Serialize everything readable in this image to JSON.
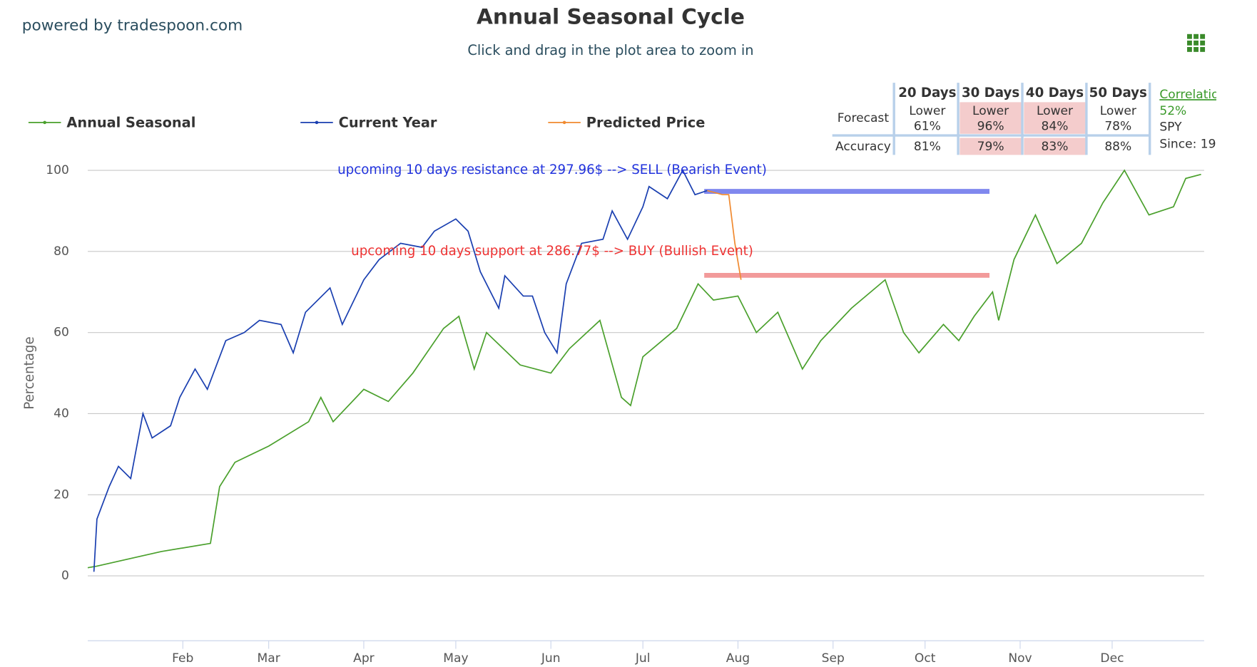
{
  "brand": "powered by tradespoon.com",
  "chart_data": {
    "type": "line",
    "title": "Annual Seasonal Cycle",
    "subtitle": "Click and drag in the plot area to zoom in",
    "y_label": "Percentage",
    "xlim": [
      1,
      365
    ],
    "ylim": [
      -16,
      102
    ],
    "yticks": [
      0,
      20,
      40,
      60,
      80,
      100
    ],
    "xticks": [
      {
        "value": 32,
        "label": "Feb"
      },
      {
        "value": 60,
        "label": "Mar"
      },
      {
        "value": 91,
        "label": "Apr"
      },
      {
        "value": 121,
        "label": "May"
      },
      {
        "value": 152,
        "label": "Jun"
      },
      {
        "value": 182,
        "label": "Jul"
      },
      {
        "value": 213,
        "label": "Aug"
      },
      {
        "value": 244,
        "label": "Sep"
      },
      {
        "value": 274,
        "label": "Oct"
      },
      {
        "value": 305,
        "label": "Nov"
      },
      {
        "value": 335,
        "label": "Dec"
      }
    ],
    "grid": true,
    "series": [
      {
        "name": "Annual Seasonal",
        "color": "#4aa02c",
        "x": [
          1,
          4,
          25,
          41,
          44,
          49,
          60,
          73,
          77,
          81,
          91,
          99,
          107,
          117,
          122,
          127,
          131,
          142,
          152,
          158,
          168,
          175,
          178,
          182,
          193,
          200,
          205,
          213,
          219,
          226,
          234,
          240,
          250,
          261,
          267,
          272,
          280,
          285,
          290,
          296,
          298,
          303,
          310,
          317,
          325,
          332,
          339,
          347,
          355,
          359,
          364
        ],
        "values": [
          2,
          2.4,
          6,
          8,
          22,
          28,
          32,
          38,
          44,
          38,
          46,
          43,
          50,
          61,
          64,
          51,
          60,
          52,
          50,
          56,
          63,
          44,
          42,
          54,
          61,
          72,
          68,
          69,
          60,
          65,
          51,
          58,
          66,
          73,
          60,
          55,
          62,
          58,
          64,
          70,
          63,
          78,
          89,
          77,
          82,
          92,
          100,
          89,
          91,
          98,
          99
        ]
      },
      {
        "name": "Current Year",
        "color": "#1a3fb0",
        "x": [
          3,
          4,
          8,
          11,
          15,
          19,
          22,
          28,
          31,
          36,
          40,
          46,
          52,
          57,
          64,
          68,
          72,
          80,
          84,
          91,
          96,
          103,
          110,
          114,
          121,
          125,
          129,
          135,
          137,
          143,
          146,
          150,
          154,
          157,
          162,
          169,
          172,
          177,
          182,
          184,
          190,
          195,
          199,
          203
        ],
        "values": [
          1,
          14,
          22,
          27,
          24,
          40,
          34,
          37,
          44,
          51,
          46,
          58,
          60,
          63,
          62,
          55,
          65,
          71,
          62,
          73,
          78,
          82,
          81,
          85,
          88,
          85,
          75,
          66,
          74,
          69,
          69,
          60,
          55,
          72,
          82,
          83,
          90,
          83,
          91,
          96,
          93,
          100,
          94,
          95
        ]
      },
      {
        "name": "Predicted Price",
        "color": "#f08a30",
        "x": [
          203,
          208,
          210,
          212,
          214
        ],
        "values": [
          95,
          94,
          94,
          82,
          73
        ]
      }
    ],
    "levels": [
      {
        "value": 94.8,
        "x": [
          202,
          295
        ],
        "color": "#8088ee",
        "text": "upcoming 10 days resistance at 297.96$ --> SELL (Bearish Event)",
        "text_color": "#2233dd"
      },
      {
        "value": 74.1,
        "x": [
          202,
          295
        ],
        "color": "#f29a9a",
        "text": "upcoming 10 days support at 286.77$ --> BUY (Bullish Event)",
        "text_color": "#ee3333"
      }
    ]
  },
  "table": {
    "headers": [
      "20 Days",
      "30 Days",
      "40 Days",
      "50 Days"
    ],
    "forecast_label": "Forecast",
    "forecast": [
      {
        "direction": "Lower",
        "value": "61%",
        "highlight": false
      },
      {
        "direction": "Lower",
        "value": "96%",
        "highlight": true
      },
      {
        "direction": "Lower",
        "value": "84%",
        "highlight": true
      },
      {
        "direction": "Lower",
        "value": "78%",
        "highlight": false
      }
    ],
    "accuracy_label": "Accuracy",
    "accuracy": [
      {
        "value": "81%",
        "highlight": false
      },
      {
        "value": "79%",
        "highlight": true
      },
      {
        "value": "83%",
        "highlight": true
      },
      {
        "value": "88%",
        "highlight": false
      }
    ],
    "correlation": {
      "title": "Correlation",
      "value": "52%",
      "symbol": "SPY",
      "since": "Since: 19"
    }
  }
}
